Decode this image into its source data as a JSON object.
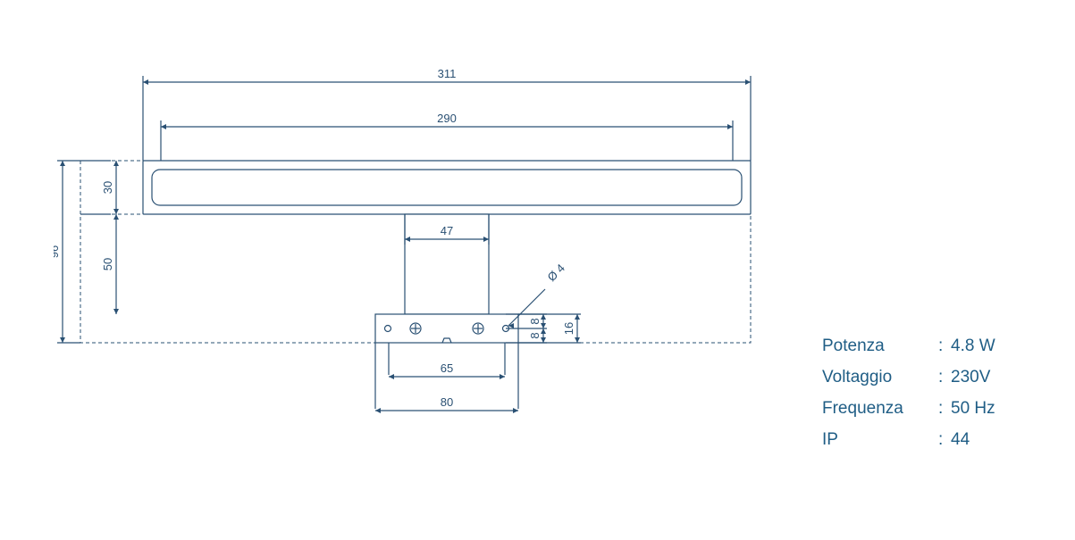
{
  "drawing": {
    "stroke_color": "#2a5073",
    "stroke_width_main": 1.2,
    "stroke_width_dash": 1.0,
    "dash_pattern": "4 3",
    "dim_font_size": 13,
    "dims": {
      "overall_width": "311",
      "inner_width": "290",
      "neck_width": "47",
      "screw_span": "65",
      "plate_width": "80",
      "bar_height": "30",
      "neck_height": "50",
      "overall_height": "96",
      "plate_height": "16",
      "hole_offset_a": "8",
      "hole_offset_b": "8",
      "hole_callout": "Ø 4"
    }
  },
  "specs": {
    "text_color": "#1f5d85",
    "rows": [
      {
        "label": "Potenza",
        "value": "4.8 W"
      },
      {
        "label": "Voltaggio",
        "value": "230V"
      },
      {
        "label": "Frequenza",
        "value": "50 Hz"
      },
      {
        "label": "IP",
        "value": "44"
      }
    ]
  }
}
